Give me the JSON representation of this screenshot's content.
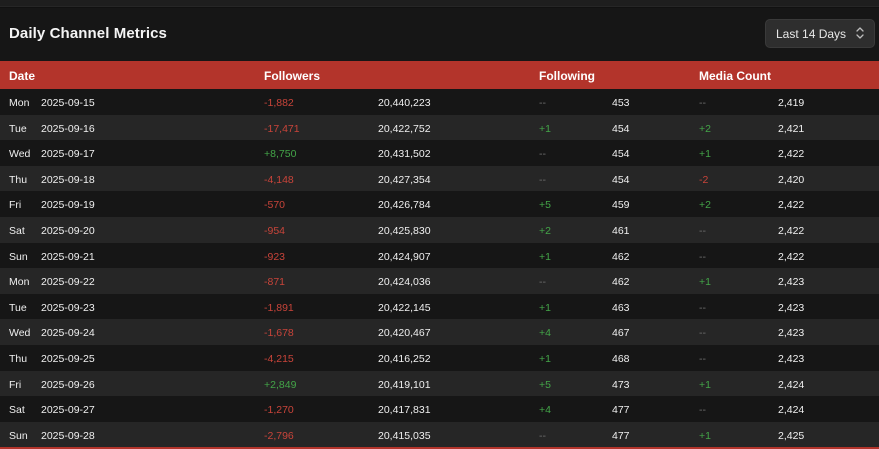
{
  "title": "Daily Channel Metrics",
  "range_select": {
    "value": "Last 14 Days",
    "icon": "chevron-up-down-icon"
  },
  "columns": {
    "date": "Date",
    "followers": "Followers",
    "following": "Following",
    "media": "Media Count"
  },
  "colors": {
    "header_bg": "#b3342b",
    "negative": "#c8443a",
    "positive": "#43a548",
    "neutral": "#6f6f6f"
  },
  "rows": [
    {
      "day": "Mon",
      "date": "2025-09-15",
      "followers_delta": "-1,882",
      "followers": "20,440,223",
      "following_delta": "--",
      "following": "453",
      "media_delta": "--",
      "media": "2,419"
    },
    {
      "day": "Tue",
      "date": "2025-09-16",
      "followers_delta": "-17,471",
      "followers": "20,422,752",
      "following_delta": "+1",
      "following": "454",
      "media_delta": "+2",
      "media": "2,421"
    },
    {
      "day": "Wed",
      "date": "2025-09-17",
      "followers_delta": "+8,750",
      "followers": "20,431,502",
      "following_delta": "--",
      "following": "454",
      "media_delta": "+1",
      "media": "2,422"
    },
    {
      "day": "Thu",
      "date": "2025-09-18",
      "followers_delta": "-4,148",
      "followers": "20,427,354",
      "following_delta": "--",
      "following": "454",
      "media_delta": "-2",
      "media": "2,420"
    },
    {
      "day": "Fri",
      "date": "2025-09-19",
      "followers_delta": "-570",
      "followers": "20,426,784",
      "following_delta": "+5",
      "following": "459",
      "media_delta": "+2",
      "media": "2,422"
    },
    {
      "day": "Sat",
      "date": "2025-09-20",
      "followers_delta": "-954",
      "followers": "20,425,830",
      "following_delta": "+2",
      "following": "461",
      "media_delta": "--",
      "media": "2,422"
    },
    {
      "day": "Sun",
      "date": "2025-09-21",
      "followers_delta": "-923",
      "followers": "20,424,907",
      "following_delta": "+1",
      "following": "462",
      "media_delta": "--",
      "media": "2,422"
    },
    {
      "day": "Mon",
      "date": "2025-09-22",
      "followers_delta": "-871",
      "followers": "20,424,036",
      "following_delta": "--",
      "following": "462",
      "media_delta": "+1",
      "media": "2,423"
    },
    {
      "day": "Tue",
      "date": "2025-09-23",
      "followers_delta": "-1,891",
      "followers": "20,422,145",
      "following_delta": "+1",
      "following": "463",
      "media_delta": "--",
      "media": "2,423"
    },
    {
      "day": "Wed",
      "date": "2025-09-24",
      "followers_delta": "-1,678",
      "followers": "20,420,467",
      "following_delta": "+4",
      "following": "467",
      "media_delta": "--",
      "media": "2,423"
    },
    {
      "day": "Thu",
      "date": "2025-09-25",
      "followers_delta": "-4,215",
      "followers": "20,416,252",
      "following_delta": "+1",
      "following": "468",
      "media_delta": "--",
      "media": "2,423"
    },
    {
      "day": "Fri",
      "date": "2025-09-26",
      "followers_delta": "+2,849",
      "followers": "20,419,101",
      "following_delta": "+5",
      "following": "473",
      "media_delta": "+1",
      "media": "2,424"
    },
    {
      "day": "Sat",
      "date": "2025-09-27",
      "followers_delta": "-1,270",
      "followers": "20,417,831",
      "following_delta": "+4",
      "following": "477",
      "media_delta": "--",
      "media": "2,424"
    },
    {
      "day": "Sun",
      "date": "2025-09-28",
      "followers_delta": "-2,796",
      "followers": "20,415,035",
      "following_delta": "--",
      "following": "477",
      "media_delta": "+1",
      "media": "2,425"
    }
  ]
}
